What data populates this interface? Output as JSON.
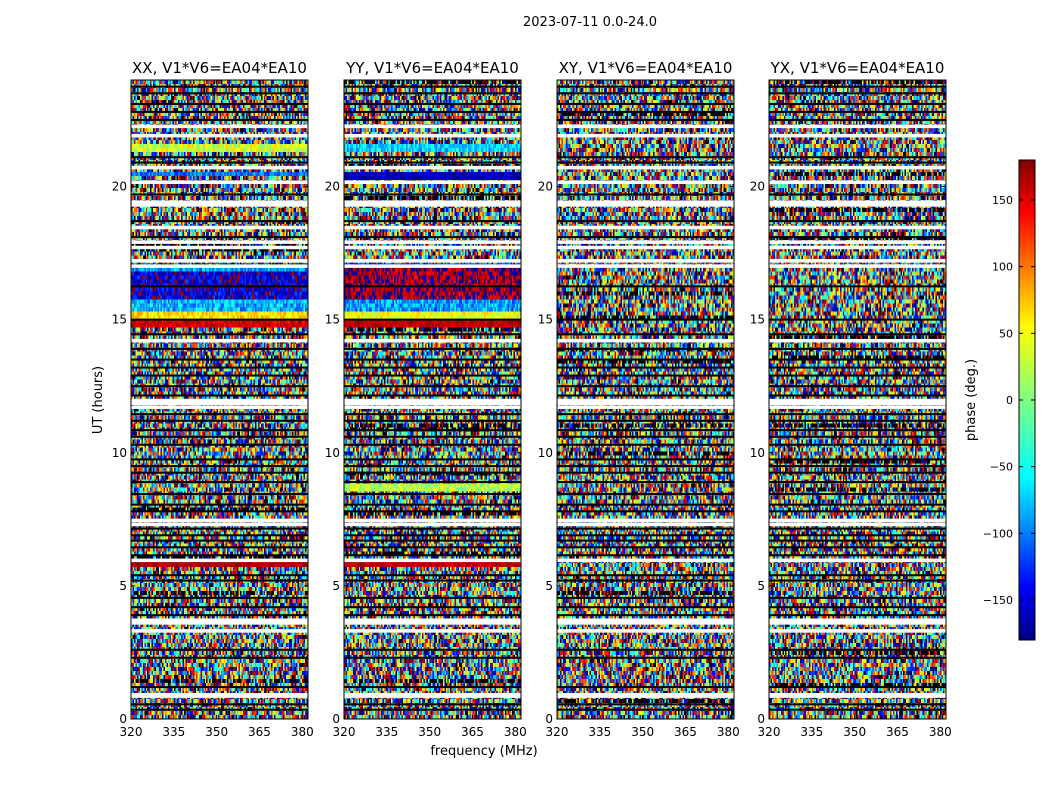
{
  "suptitle": "2023-07-11 0.0-24.0",
  "xlabel": "frequency (MHz)",
  "ylabel": "UT (hours)",
  "chart_data": {
    "type": "heatmap",
    "xlim": [
      320,
      382
    ],
    "ylim": [
      0,
      24
    ],
    "x_ticks": [
      320,
      335,
      350,
      365,
      380
    ],
    "y_ticks": [
      0,
      5,
      10,
      15,
      20
    ],
    "x_tick_labels": [
      "320",
      "335",
      "350",
      "365",
      "380"
    ],
    "y_tick_labels": [
      "0",
      "5",
      "10",
      "15",
      "20"
    ],
    "panels": [
      {
        "title": "XX, V1*V6=EA04*EA10",
        "polarization": "XX",
        "coherent_bands": [
          {
            "t0": 14.7,
            "t1": 14.95,
            "phase": 150,
            "spread": 25
          },
          {
            "t0": 14.95,
            "t1": 15.3,
            "phase": 55,
            "spread": 30
          },
          {
            "t0": 15.3,
            "t1": 15.7,
            "phase": -70,
            "spread": 40
          },
          {
            "t0": 15.7,
            "t1": 16.8,
            "phase": -150,
            "spread": 45
          },
          {
            "t0": 16.8,
            "t1": 17.0,
            "phase": -80,
            "spread": 35
          },
          {
            "t0": 20.35,
            "t1": 20.6,
            "phase": -95,
            "spread": 30
          },
          {
            "t0": 21.3,
            "t1": 21.6,
            "phase": 30,
            "spread": 35
          },
          {
            "t0": 5.7,
            "t1": 6.05,
            "phase": 165,
            "spread": 15
          }
        ]
      },
      {
        "title": "YY, V1*V6=EA04*EA10",
        "polarization": "YY",
        "coherent_bands": [
          {
            "t0": 14.7,
            "t1": 14.95,
            "phase": 160,
            "spread": 20
          },
          {
            "t0": 14.95,
            "t1": 15.3,
            "phase": 40,
            "spread": 30
          },
          {
            "t0": 15.3,
            "t1": 15.8,
            "phase": -80,
            "spread": 40
          },
          {
            "t0": 15.8,
            "t1": 16.9,
            "phase": 170,
            "spread": 40
          },
          {
            "t0": 16.9,
            "t1": 17.1,
            "phase": -120,
            "spread": 35
          },
          {
            "t0": 20.2,
            "t1": 20.5,
            "phase": -160,
            "spread": 20
          },
          {
            "t0": 21.3,
            "t1": 21.6,
            "phase": -60,
            "spread": 35
          },
          {
            "t0": 5.7,
            "t1": 6.05,
            "phase": 160,
            "spread": 15
          },
          {
            "t0": 8.6,
            "t1": 8.8,
            "phase": 20,
            "spread": 30
          }
        ]
      },
      {
        "title": "XY, V1*V6=EA04*EA10",
        "polarization": "XY",
        "coherent_bands": []
      },
      {
        "title": "YX, V1*V6=EA04*EA10",
        "polarization": "YX",
        "coherent_bands": []
      }
    ],
    "flagged_rows_hours": [
      0.85,
      0.9,
      3.3,
      3.6,
      3.7,
      5.95,
      7.3,
      7.45,
      11.7,
      11.85,
      11.95,
      14.2,
      17.0,
      17.2,
      17.7,
      17.9,
      18.45,
      19.3,
      19.4,
      20.15,
      20.7,
      21.9,
      22.25
    ],
    "black_rows_hours": [
      0.35,
      0.55,
      1.2,
      2.3,
      2.6,
      3.9,
      4.2,
      4.55,
      5.2,
      5.4,
      6.15,
      6.45,
      6.7,
      6.9,
      7.15,
      7.8,
      8.05,
      8.45,
      8.9,
      9.25,
      9.5,
      9.75,
      10.3,
      10.6,
      10.85,
      11.2,
      11.45,
      12.15,
      12.5,
      12.9,
      13.2,
      13.5,
      13.9,
      14.45,
      15.0,
      16.25,
      18.1,
      18.7,
      19.7,
      20.9,
      21.1,
      22.5,
      22.8,
      23.1,
      23.5,
      23.75
    ],
    "colorbar": {
      "label": "phase (deg.)",
      "range": [
        -180,
        180
      ],
      "ticks": [
        150,
        100,
        50,
        0,
        -50,
        -100,
        -150
      ],
      "tick_labels": [
        "150",
        "100",
        "50",
        "0",
        "−50",
        "−100",
        "−150"
      ],
      "colormap": "jet",
      "colors": [
        "#00007f",
        "#0000ff",
        "#007fff",
        "#00ffff",
        "#7fff7f",
        "#ffff00",
        "#ff7f00",
        "#ff0000",
        "#7f0000"
      ]
    }
  }
}
